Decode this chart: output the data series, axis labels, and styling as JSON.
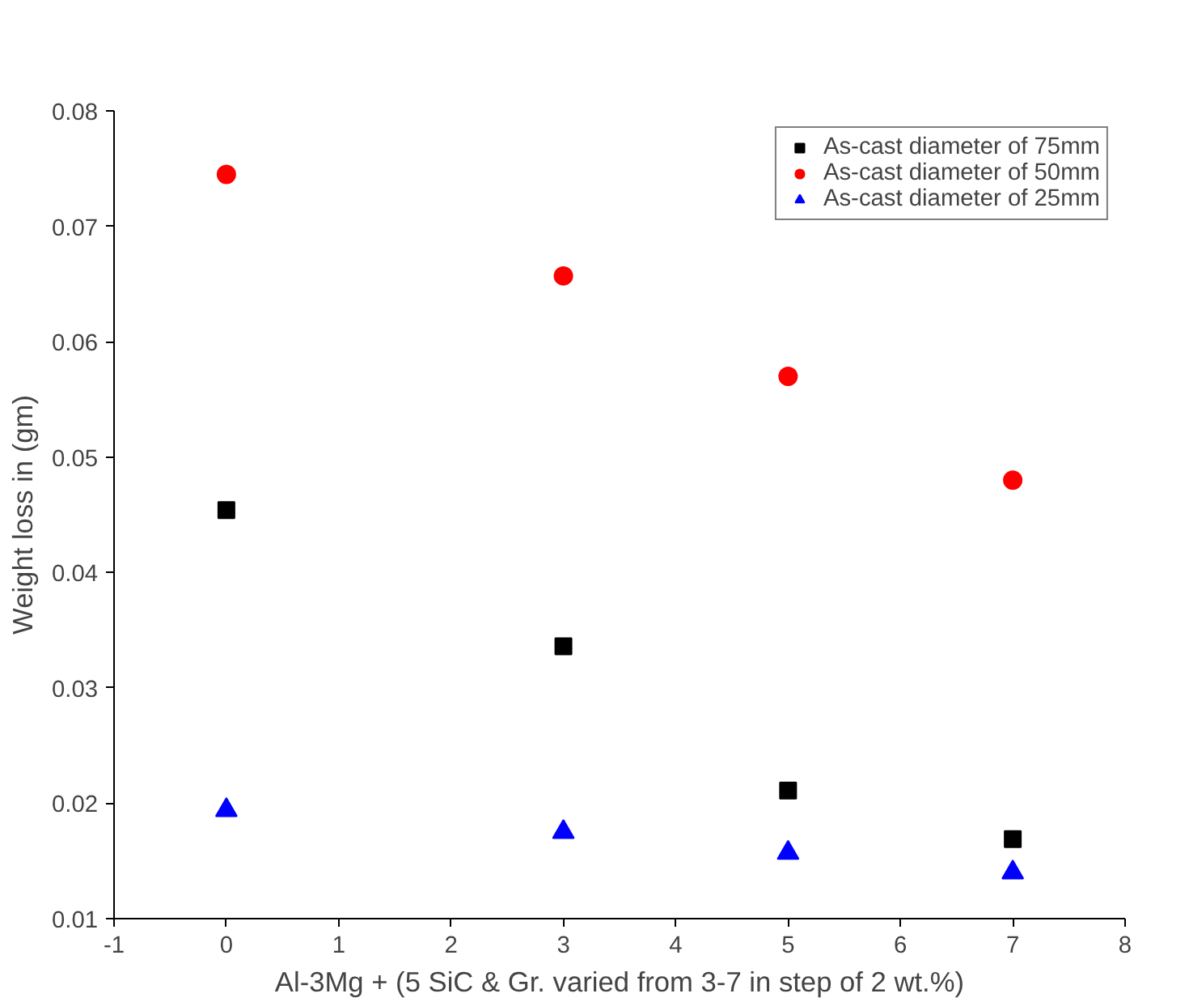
{
  "chart_data": {
    "type": "scatter",
    "xlabel": "Al-3Mg + (5 SiC & Gr. varied from 3-7 in step of 2 wt.%)",
    "ylabel": "Weight loss in (gm)",
    "x": [
      0,
      3,
      5,
      7
    ],
    "series": [
      {
        "name": "As-cast diameter of 75mm",
        "color": "#000000",
        "marker": "square",
        "values": [
          0.0454,
          0.0336,
          0.0211,
          0.0169
        ]
      },
      {
        "name": "As-cast diameter of 50mm",
        "color": "#ff0000",
        "marker": "circle",
        "values": [
          0.0745,
          0.0657,
          0.057,
          0.048
        ]
      },
      {
        "name": "As-cast diameter of 25mm",
        "color": "#0000ff",
        "marker": "triangle",
        "values": [
          0.0194,
          0.0175,
          0.0157,
          0.014
        ]
      }
    ],
    "xlim": [
      -1,
      8
    ],
    "xticks": [
      -1,
      0,
      1,
      2,
      3,
      4,
      5,
      6,
      7,
      8
    ],
    "ylim": [
      0.01,
      0.08
    ],
    "yticks": [
      0.01,
      0.02,
      0.03,
      0.04,
      0.05,
      0.06,
      0.07,
      0.08
    ],
    "grid": false,
    "legend": "top right"
  }
}
